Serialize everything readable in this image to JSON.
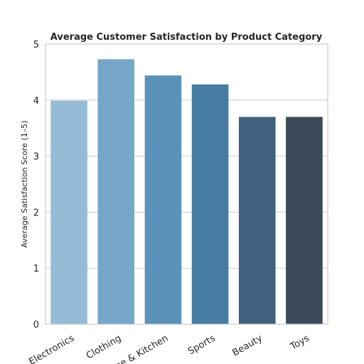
{
  "chart_data": {
    "type": "bar",
    "title": "Average Customer Satisfaction by Product Category",
    "xlabel": "",
    "ylabel": "Average Satisfaction Score (1–5)",
    "categories": [
      "Electronics",
      "Clothing",
      "Home & Kitchen",
      "Sports",
      "Beauty",
      "Toys"
    ],
    "values": [
      3.99,
      4.73,
      4.44,
      4.28,
      3.7,
      3.7
    ],
    "colors": [
      "#96bbd6",
      "#76a7c8",
      "#5b92ba",
      "#467ca4",
      "#3f617d",
      "#3b4a58"
    ],
    "ylim": [
      0,
      5
    ],
    "yticks": [
      "0",
      "1",
      "2",
      "3",
      "4",
      "5"
    ],
    "grid": "horizontal",
    "legend": "none"
  }
}
